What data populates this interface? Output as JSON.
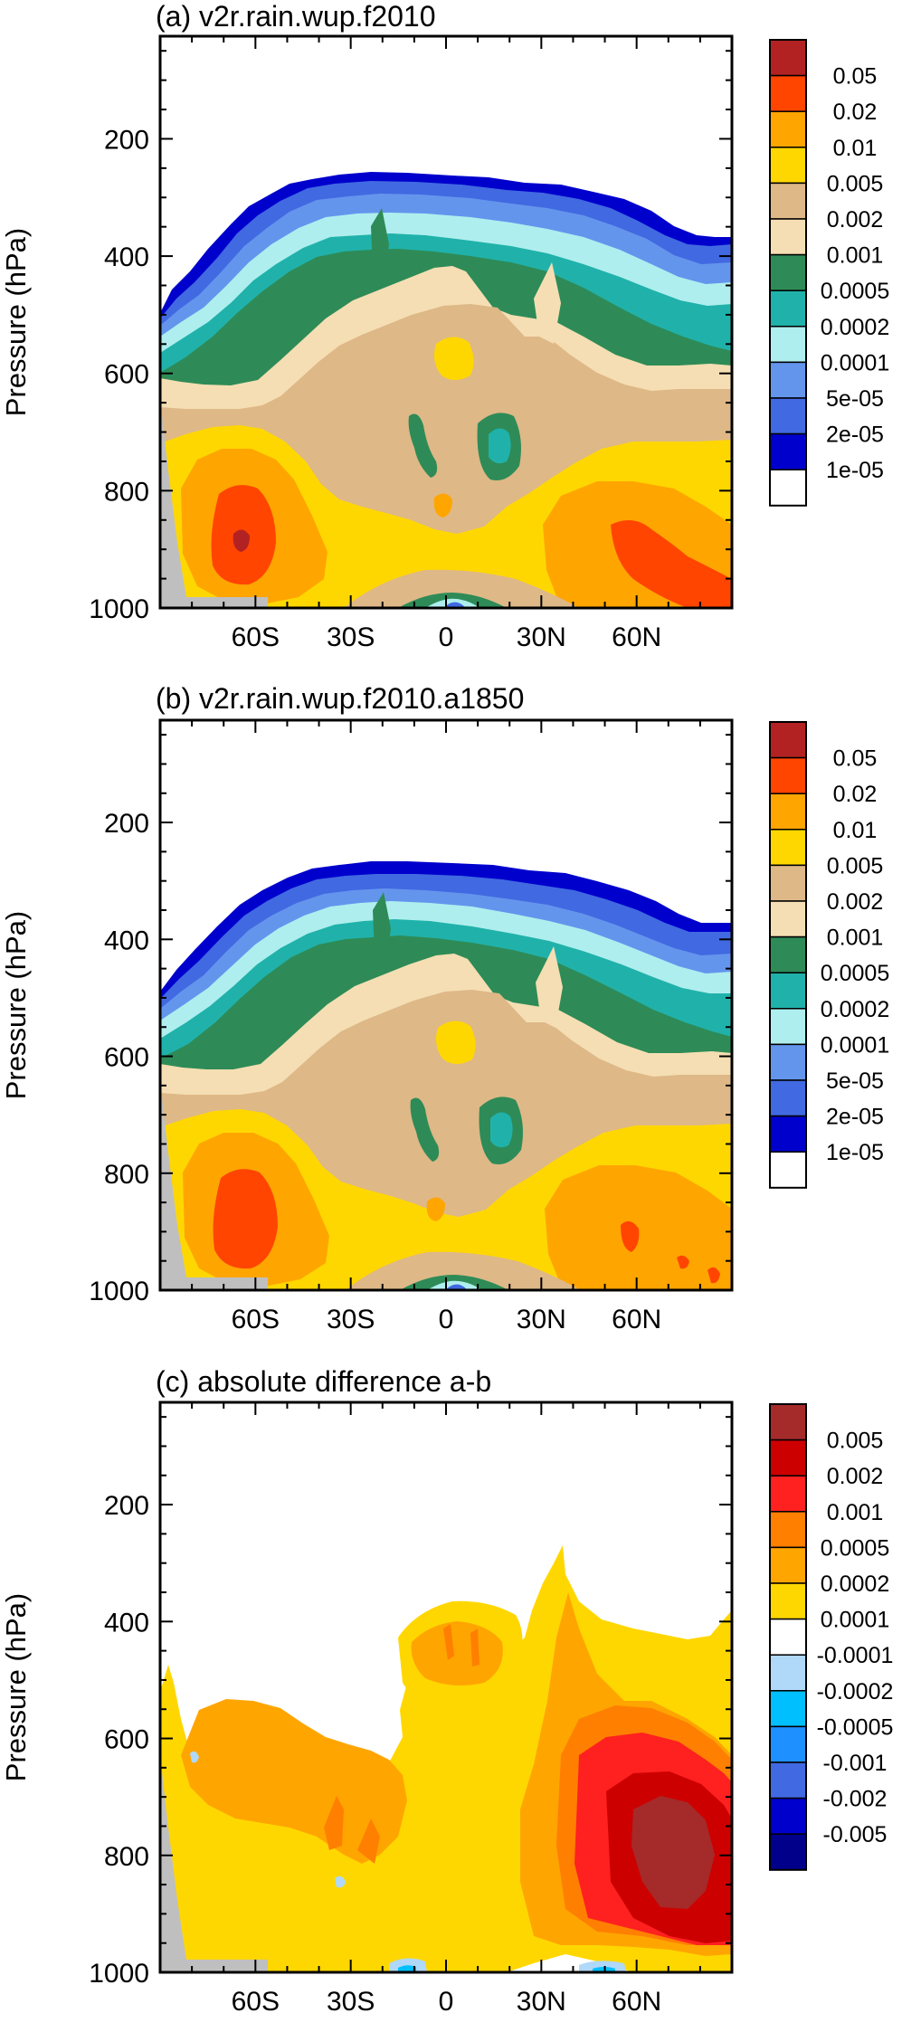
{
  "chart_data": [
    {
      "type": "contour",
      "title": "(a) v2r.rain.wup.f2010",
      "xlabel": "",
      "ylabel": "Pressure (hPa)",
      "x_ticks": [
        "60S",
        "30S",
        "0",
        "30N",
        "60N"
      ],
      "x_tick_values": [
        -60,
        -30,
        0,
        30,
        60
      ],
      "xlim": [
        -90,
        90
      ],
      "y_ticks": [
        "200",
        "400",
        "600",
        "800",
        "1000"
      ],
      "y_tick_values": [
        200,
        400,
        600,
        800,
        1000
      ],
      "ylim": [
        1000,
        25
      ],
      "colorbar": {
        "labels": [
          "0.05",
          "0.02",
          "0.01",
          "0.005",
          "0.002",
          "0.001",
          "0.0005",
          "0.0002",
          "0.0001",
          "5e-05",
          "2e-05",
          "1e-05"
        ],
        "colors": [
          "#b22222",
          "#ff4500",
          "#ffa500",
          "#ffd700",
          "#deb887",
          "#f5deb3",
          "#2e8b57",
          "#20b2aa",
          "#afeeee",
          "#6495ed",
          "#4169e1",
          "#0000cd",
          "#ffffff"
        ]
      }
    },
    {
      "type": "contour",
      "title": "(b) v2r.rain.wup.f2010.a1850",
      "xlabel": "",
      "ylabel": "Pressure (hPa)",
      "x_ticks": [
        "60S",
        "30S",
        "0",
        "30N",
        "60N"
      ],
      "x_tick_values": [
        -60,
        -30,
        0,
        30,
        60
      ],
      "xlim": [
        -90,
        90
      ],
      "y_ticks": [
        "200",
        "400",
        "600",
        "800",
        "1000"
      ],
      "y_tick_values": [
        200,
        400,
        600,
        800,
        1000
      ],
      "ylim": [
        1000,
        25
      ],
      "colorbar": {
        "labels": [
          "0.05",
          "0.02",
          "0.01",
          "0.005",
          "0.002",
          "0.001",
          "0.0005",
          "0.0002",
          "0.0001",
          "5e-05",
          "2e-05",
          "1e-05"
        ],
        "colors": [
          "#b22222",
          "#ff4500",
          "#ffa500",
          "#ffd700",
          "#deb887",
          "#f5deb3",
          "#2e8b57",
          "#20b2aa",
          "#afeeee",
          "#6495ed",
          "#4169e1",
          "#0000cd",
          "#ffffff"
        ]
      }
    },
    {
      "type": "contour",
      "title": "(c) absolute difference a-b",
      "xlabel": "",
      "ylabel": "Pressure (hPa)",
      "x_ticks": [
        "60S",
        "30S",
        "0",
        "30N",
        "60N"
      ],
      "x_tick_values": [
        -60,
        -30,
        0,
        30,
        60
      ],
      "xlim": [
        -90,
        90
      ],
      "y_ticks": [
        "200",
        "400",
        "600",
        "800",
        "1000"
      ],
      "y_tick_values": [
        200,
        400,
        600,
        800,
        1000
      ],
      "ylim": [
        1000,
        25
      ],
      "colorbar": {
        "labels": [
          "0.005",
          "0.002",
          "0.001",
          "0.0005",
          "0.0002",
          "0.0001",
          "-0.0001",
          "-0.0002",
          "-0.0005",
          "-0.001",
          "-0.002",
          "-0.005"
        ],
        "colors": [
          "#a52a2a",
          "#cd0000",
          "#ff2020",
          "#ff7f00",
          "#ffa500",
          "#ffd700",
          "#ffffff",
          "#b0d8f8",
          "#00bfff",
          "#1e90ff",
          "#4169e1",
          "#0000cd",
          "#00008b"
        ]
      }
    }
  ]
}
